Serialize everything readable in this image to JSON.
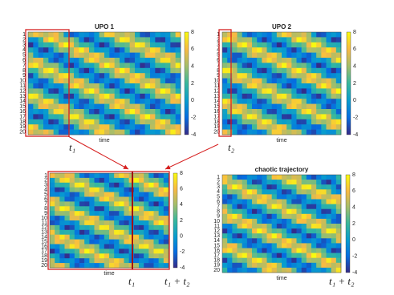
{
  "panels": [
    {
      "title": "UPO 1",
      "row_labels": [
        "1",
        "2",
        "3",
        "4",
        "5",
        "6",
        "7",
        "8",
        "9",
        "10",
        "11",
        "12",
        "13",
        "14",
        "15",
        "16",
        "17",
        "18",
        "19",
        "20"
      ],
      "xlabel": "time",
      "colorbar_ticks": [
        8,
        6,
        4,
        2,
        0,
        -2,
        -4
      ]
    },
    {
      "title": "UPO 2",
      "row_labels": [
        "1",
        "2",
        "3",
        "4",
        "5",
        "6",
        "7",
        "8",
        "9",
        "10",
        "11",
        "12",
        "13",
        "14",
        "15",
        "16",
        "17",
        "18",
        "19",
        "20"
      ],
      "xlabel": "time",
      "colorbar_ticks": [
        8,
        6,
        4,
        2,
        0,
        -2,
        -4
      ]
    },
    {
      "row_labels": [
        "1",
        "2",
        "3",
        "4",
        "5",
        "6",
        "7",
        "8",
        "9",
        "10",
        "11",
        "12",
        "13",
        "14",
        "15",
        "16",
        "17",
        "18",
        "19",
        "20"
      ],
      "xlabel": "time",
      "colorbar_ticks": [
        8,
        6,
        4,
        2,
        0,
        -2,
        -4
      ]
    },
    {
      "title": "chaotic trajectory",
      "row_labels": [
        "1",
        "2",
        "3",
        "4",
        "5",
        "6",
        "7",
        "8",
        "9",
        "10",
        "11",
        "12",
        "13",
        "14",
        "15",
        "16",
        "17",
        "18",
        "19",
        "20"
      ],
      "xlabel": "time",
      "colorbar_ticks": [
        8,
        6,
        4,
        2,
        0,
        -2,
        -4
      ]
    }
  ],
  "annotations": {
    "t1_top": "t₁",
    "t2_top": "t₂",
    "t1_bottom": "t₁",
    "t1t2_bottom": "t₁ + t₂",
    "t1t2_right": "t₁ + t₂"
  }
}
